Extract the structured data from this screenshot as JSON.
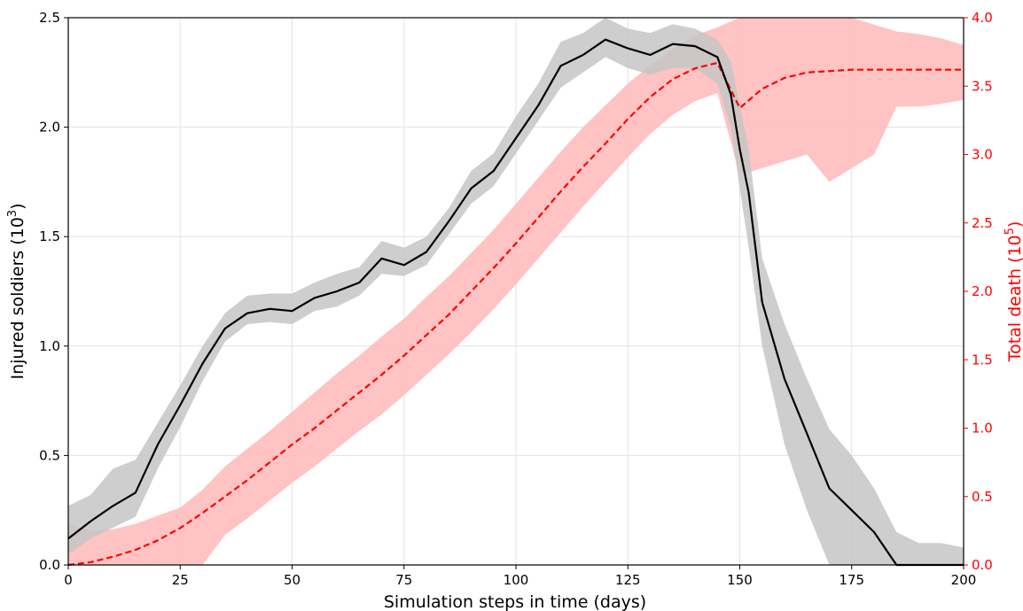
{
  "chart_data": {
    "type": "line",
    "xlabel": "Simulation steps in time (days)",
    "ylabel_left": {
      "text": "Injured soldiers (10",
      "sup": "3",
      "tail": ")"
    },
    "ylabel_right": {
      "text": "Total death (10",
      "sup": "5",
      "tail": ")"
    },
    "xlim": [
      0,
      200
    ],
    "ylim_left": [
      0,
      2.5
    ],
    "ylim_right": [
      0,
      4.0
    ],
    "x_ticks": [
      "0",
      "25",
      "50",
      "75",
      "100",
      "125",
      "150",
      "175",
      "200"
    ],
    "y_ticks_left": [
      "0.0",
      "0.5",
      "1.0",
      "1.5",
      "2.0",
      "2.5"
    ],
    "y_ticks_right": [
      "0.0",
      "0.5",
      "1.0",
      "1.5",
      "2.0",
      "2.5",
      "3.0",
      "3.5",
      "4.0"
    ],
    "grid": true,
    "colors": {
      "injured": "#000000",
      "injured_band": "#c6c6c6",
      "death": "#ff0000",
      "death_band": "#ffbcbc",
      "right_axis": "#ff0000"
    },
    "series": [
      {
        "axis": "left",
        "style": "solid",
        "x": [
          0,
          5,
          10,
          15,
          20,
          25,
          30,
          35,
          40,
          45,
          50,
          55,
          60,
          65,
          70,
          75,
          80,
          85,
          90,
          95,
          100,
          105,
          110,
          115,
          120,
          125,
          130,
          135,
          140,
          145,
          148,
          150,
          152,
          155,
          160,
          165,
          170,
          175,
          180,
          185,
          190,
          195,
          200
        ],
        "y": [
          0.12,
          0.2,
          0.27,
          0.33,
          0.55,
          0.73,
          0.92,
          1.08,
          1.15,
          1.17,
          1.16,
          1.22,
          1.25,
          1.29,
          1.4,
          1.37,
          1.43,
          1.57,
          1.72,
          1.8,
          1.95,
          2.1,
          2.28,
          2.33,
          2.4,
          2.36,
          2.33,
          2.38,
          2.37,
          2.32,
          2.15,
          1.9,
          1.7,
          1.2,
          0.85,
          0.6,
          0.35,
          0.25,
          0.15,
          0.0,
          0.0,
          0.0,
          0.0
        ],
        "band_lower": [
          0.05,
          0.12,
          0.17,
          0.22,
          0.44,
          0.63,
          0.84,
          1.02,
          1.1,
          1.11,
          1.1,
          1.16,
          1.18,
          1.23,
          1.33,
          1.32,
          1.37,
          1.51,
          1.65,
          1.73,
          1.88,
          2.03,
          2.18,
          2.25,
          2.32,
          2.27,
          2.24,
          2.27,
          2.27,
          2.2,
          2.0,
          1.72,
          1.45,
          1.0,
          0.55,
          0.25,
          0.0,
          0.0,
          0.0,
          0.0,
          0.0,
          0.0,
          0.0
        ],
        "band_upper": [
          0.27,
          0.32,
          0.44,
          0.48,
          0.65,
          0.82,
          1.0,
          1.15,
          1.23,
          1.24,
          1.24,
          1.29,
          1.33,
          1.36,
          1.48,
          1.45,
          1.5,
          1.63,
          1.8,
          1.88,
          2.05,
          2.2,
          2.39,
          2.43,
          2.52,
          2.45,
          2.43,
          2.47,
          2.45,
          2.4,
          2.3,
          2.1,
          1.9,
          1.4,
          1.1,
          0.85,
          0.62,
          0.5,
          0.35,
          0.15,
          0.1,
          0.1,
          0.08
        ]
      },
      {
        "axis": "right",
        "style": "dashed",
        "x": [
          0,
          5,
          10,
          15,
          20,
          25,
          30,
          35,
          40,
          45,
          50,
          55,
          60,
          65,
          70,
          75,
          80,
          85,
          90,
          95,
          100,
          105,
          110,
          115,
          120,
          125,
          130,
          135,
          140,
          145,
          150,
          155,
          160,
          165,
          170,
          175,
          180,
          185,
          190,
          195,
          200
        ],
        "y": [
          0.0,
          0.02,
          0.06,
          0.11,
          0.18,
          0.27,
          0.38,
          0.5,
          0.62,
          0.75,
          0.88,
          1.0,
          1.13,
          1.26,
          1.39,
          1.53,
          1.68,
          1.83,
          2.0,
          2.17,
          2.35,
          2.54,
          2.73,
          2.91,
          3.08,
          3.26,
          3.42,
          3.55,
          3.63,
          3.67,
          3.34,
          3.48,
          3.56,
          3.6,
          3.61,
          3.62,
          3.62,
          3.62,
          3.62,
          3.62,
          3.62
        ],
        "band_lower": [
          0.0,
          0.0,
          0.0,
          0.0,
          0.0,
          0.0,
          0.0,
          0.22,
          0.34,
          0.47,
          0.6,
          0.72,
          0.85,
          0.98,
          1.1,
          1.24,
          1.39,
          1.54,
          1.7,
          1.87,
          2.05,
          2.24,
          2.43,
          2.62,
          2.8,
          2.98,
          3.15,
          3.29,
          3.39,
          3.45,
          2.85,
          2.9,
          2.95,
          3.0,
          2.8,
          2.9,
          3.0,
          3.35,
          3.35,
          3.37,
          3.4
        ],
        "band_upper": [
          0.3,
          0.25,
          0.26,
          0.3,
          0.36,
          0.42,
          0.55,
          0.72,
          0.85,
          0.98,
          1.12,
          1.26,
          1.4,
          1.53,
          1.67,
          1.8,
          1.96,
          2.11,
          2.28,
          2.45,
          2.64,
          2.83,
          3.02,
          3.2,
          3.36,
          3.52,
          3.65,
          3.77,
          3.87,
          3.93,
          4.0,
          4.0,
          4.0,
          4.0,
          4.0,
          4.0,
          3.95,
          3.9,
          3.88,
          3.85,
          3.8
        ]
      }
    ]
  }
}
